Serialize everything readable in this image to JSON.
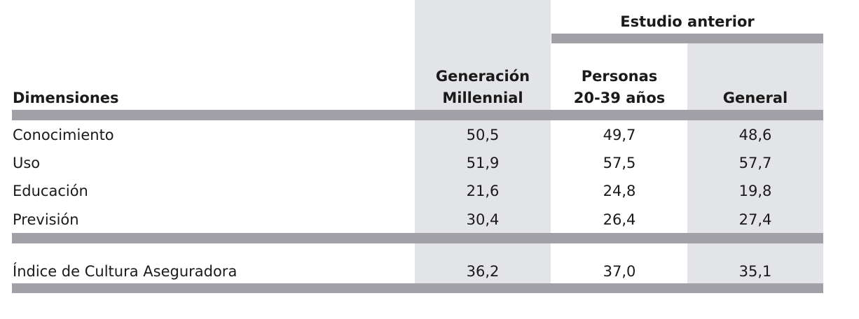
{
  "table": {
    "group_header": "Estudio anterior",
    "columns": {
      "dimensions": "Dimensiones",
      "millennial": [
        "Generación",
        "Millennial"
      ],
      "personas": [
        "Personas",
        "20-39 años"
      ],
      "general": "General"
    },
    "rows": [
      {
        "label": "Conocimiento",
        "millennial": "50,5",
        "personas": "49,7",
        "general": "48,6"
      },
      {
        "label": "Uso",
        "millennial": "51,9",
        "personas": "57,5",
        "general": "57,7"
      },
      {
        "label": "Educación",
        "millennial": "21,6",
        "personas": "24,8",
        "general": "19,8"
      },
      {
        "label": "Previsión",
        "millennial": "30,4",
        "personas": "26,4",
        "general": "27,4"
      }
    ],
    "index_row": {
      "label": "Índice de Cultura Aseguradora",
      "millennial": "36,2",
      "personas": "37,0",
      "general": "35,1"
    }
  }
}
